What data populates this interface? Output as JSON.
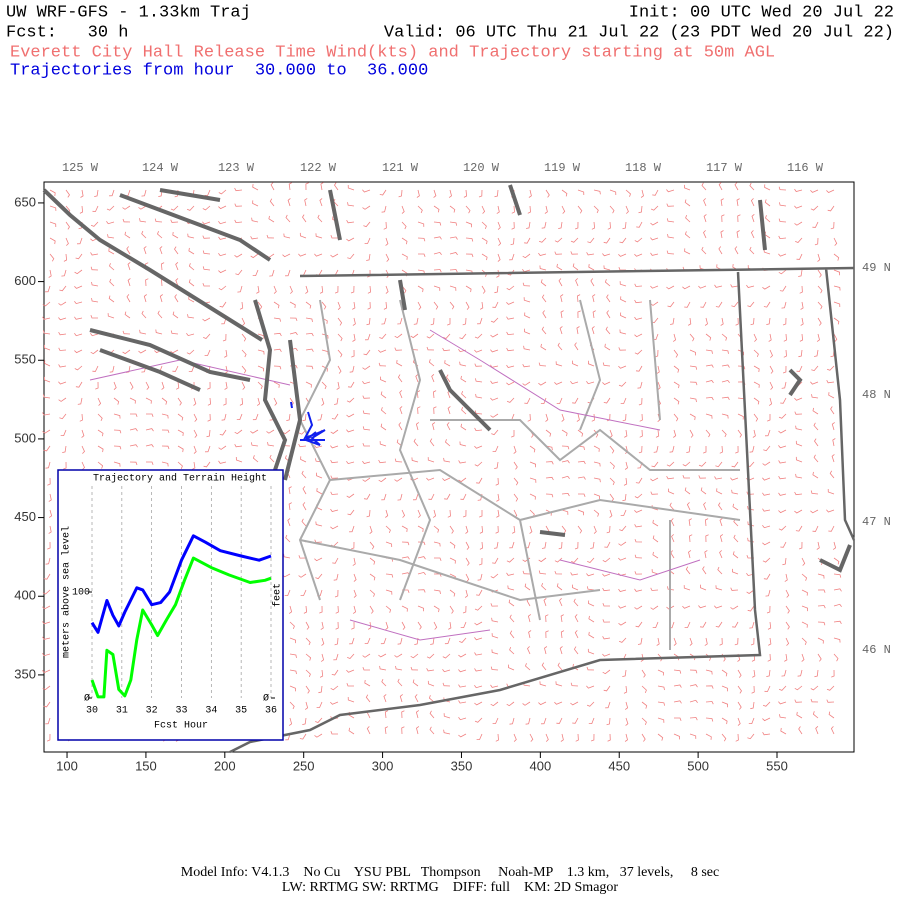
{
  "header": {
    "title": "UW WRF-GFS - 1.33km Traj",
    "init": "Init: 00 UTC Wed 20 Jul 22",
    "forecast": "Fcst:   30 h",
    "valid": "Valid: 06 UTC Thu 21 Jul 22 (23 PDT Wed 20 Jul 22)",
    "subtitle": "Everett City Hall Release Time Wind(kts) and Trajectory starting at 50m AGL",
    "trajectory_range": "Trajectories from hour  30.000 to  36.000"
  },
  "map": {
    "xlim": [
      85.4,
      598.8
    ],
    "ylim": [
      301,
      663.3
    ],
    "xticks": [
      100,
      150,
      200,
      250,
      300,
      350,
      400,
      450,
      500,
      550
    ],
    "yticks": [
      350,
      400,
      450,
      500,
      550,
      600,
      650
    ],
    "longitudes": [
      "125 W",
      "124 W",
      "123 W",
      "122 W",
      "121 W",
      "120 W",
      "119 W",
      "118 W",
      "117 W",
      "116 W"
    ],
    "latitudes": [
      "49 N",
      "48 N",
      "47 N",
      "46 N"
    ]
  },
  "inset": {
    "title": "Trajectory and Terrain Height",
    "ylabel": "meters above sea level",
    "y2label": "feet",
    "xlabel": "Fcst Hour",
    "xlim": [
      30,
      36
    ],
    "ylim": [
      0,
      200
    ],
    "xticks": [
      30,
      31,
      32,
      33,
      34,
      35,
      36
    ],
    "yticks": [
      {
        "value": 0,
        "label": "Ø"
      },
      100
    ],
    "y2ticks": [
      {
        "value": 0,
        "label": "Ø"
      }
    ],
    "series": [
      {
        "color": "#0000ff",
        "x": [
          30.0,
          30.2,
          30.5,
          30.7,
          30.9,
          31.1,
          31.5,
          31.7,
          32.0,
          32.3,
          32.6,
          33.0,
          33.4,
          33.8,
          34.3,
          35.0,
          35.6,
          36.0
        ],
        "values": [
          71,
          62,
          92,
          78,
          68,
          81,
          104,
          102,
          88,
          90,
          100,
          130,
          153,
          147,
          139,
          134,
          130,
          134
        ]
      },
      {
        "color": "#00ff00",
        "x": [
          30.0,
          30.2,
          30.4,
          30.5,
          30.7,
          30.9,
          31.1,
          31.3,
          31.5,
          31.7,
          32.0,
          32.2,
          32.5,
          32.8,
          33.1,
          33.4,
          34.0,
          34.6,
          35.3,
          35.8,
          36.0
        ],
        "values": [
          17,
          1,
          1,
          45,
          41,
          8,
          2,
          17,
          55,
          83,
          69,
          59,
          74,
          88,
          111,
          132,
          123,
          116,
          109,
          111,
          113
        ]
      }
    ]
  },
  "footer": {
    "line1": "Model Info: V4.1.3    No Cu    YSU PBL   Thompson     Noah-MP    1.3 km,   37 levels,     8 sec",
    "line2": "LW: RRTMG SW: RRTMG    DIFF: full    KM: 2D Smagor"
  }
}
